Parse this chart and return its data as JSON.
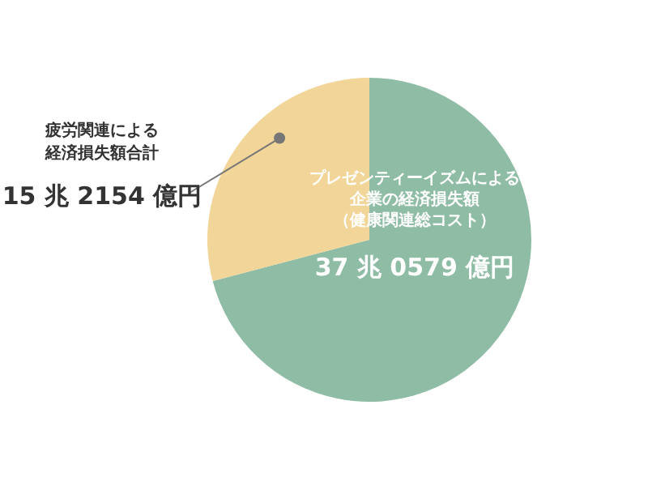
{
  "chart_data": {
    "type": "pie",
    "categories": [
      "プレゼンティーイズムによる企業の経済損失額（健康関連総コスト）",
      "疲労関連による経済損失額合計"
    ],
    "values": [
      70.9,
      29.1
    ],
    "colors": [
      "#8fbca5",
      "#f2d598"
    ],
    "annotations": [
      "37 兆 0579 億円",
      "15 兆 2154 億円"
    ],
    "legend": false
  }
}
